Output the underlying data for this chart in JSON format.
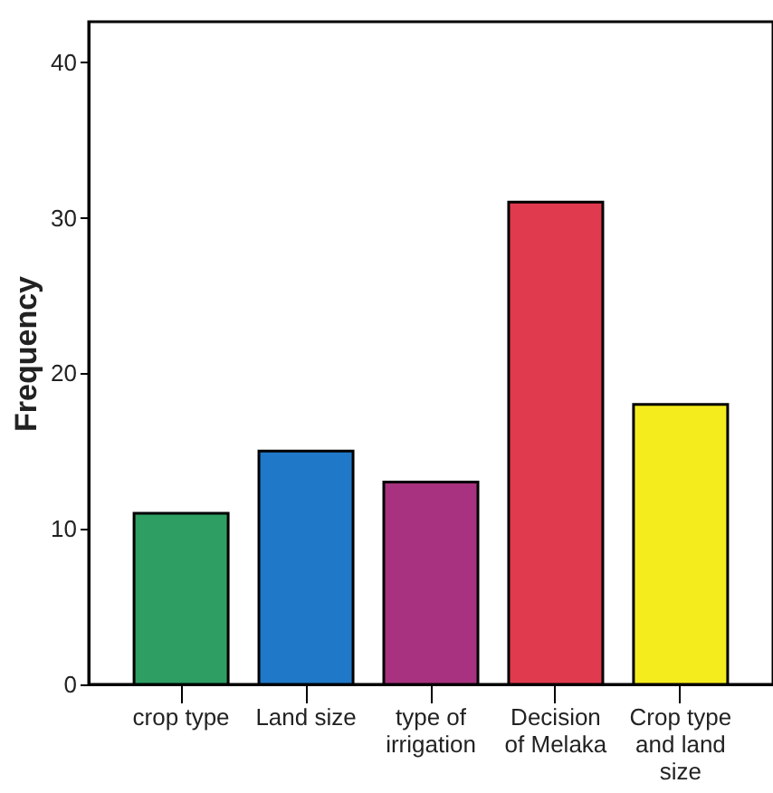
{
  "chart_data": {
    "type": "bar",
    "categories": [
      "crop type",
      "Land size",
      "type of irrigation",
      "Decision of Melaka",
      "Crop type and land size"
    ],
    "values": [
      11,
      15,
      13,
      31,
      18
    ],
    "colors": [
      "#2e9e63",
      "#1f78c8",
      "#a8327f",
      "#e03a4e",
      "#f5ec1e"
    ],
    "ylabel": "Frequency",
    "ylim": [
      0,
      42.6
    ],
    "yticks": [
      0,
      10,
      20,
      30,
      40
    ],
    "grid": false
  }
}
